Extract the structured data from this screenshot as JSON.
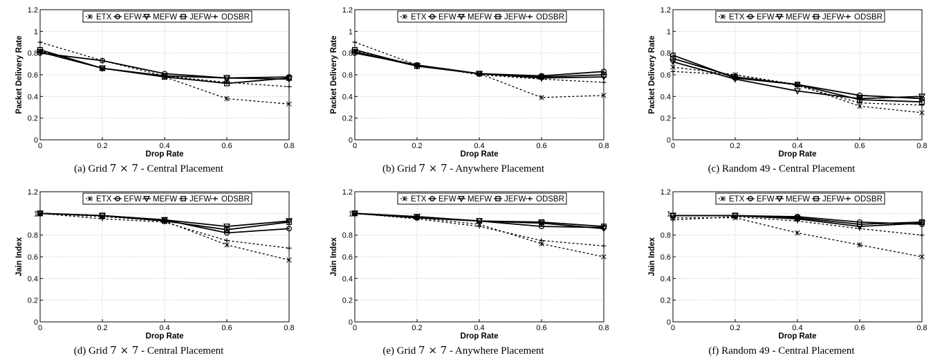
{
  "legend_labels": [
    "ETX",
    "EFW",
    "MEFW",
    "JEFW",
    "ODSBR"
  ],
  "chart_data": [
    {
      "type": "line",
      "caption_prefix": "(a) Grid",
      "caption_math": "7 × 7",
      "caption_suffix": "- Central Placement",
      "xlabel": "Drop Rate",
      "ylabel": "Packet Delivery Rate",
      "xlim": [
        0,
        0.8
      ],
      "ylim": [
        0,
        1.2
      ],
      "x": [
        0,
        0.2,
        0.4,
        0.6,
        0.8
      ],
      "xticks": [
        "0",
        "0.2",
        "0.4",
        "0.6",
        "0.8"
      ],
      "yticks": [
        "0",
        "0.2",
        "0.4",
        "0.6",
        "0.8",
        "1",
        "1.2"
      ],
      "grid": true,
      "legend": "top",
      "series": [
        {
          "name": "ETX",
          "values": [
            0.82,
            0.66,
            0.58,
            0.38,
            0.33
          ]
        },
        {
          "name": "EFW",
          "values": [
            0.8,
            0.73,
            0.61,
            0.57,
            0.58
          ]
        },
        {
          "name": "MEFW",
          "values": [
            0.81,
            0.66,
            0.59,
            0.57,
            0.56
          ]
        },
        {
          "name": "JEFW",
          "values": [
            0.83,
            0.66,
            0.58,
            0.52,
            0.57
          ]
        },
        {
          "name": "ODSBR",
          "values": [
            0.9,
            0.73,
            0.59,
            0.53,
            0.49
          ]
        }
      ]
    },
    {
      "type": "line",
      "caption_prefix": "(b) Grid",
      "caption_math": "7 × 7",
      "caption_suffix": "- Anywhere Placement",
      "xlabel": "Drop Rate",
      "ylabel": "Packet Delivery Rate",
      "xlim": [
        0,
        0.8
      ],
      "ylim": [
        0,
        1.2
      ],
      "x": [
        0,
        0.2,
        0.4,
        0.6,
        0.8
      ],
      "xticks": [
        "0",
        "0.2",
        "0.4",
        "0.6",
        "0.8"
      ],
      "yticks": [
        "0",
        "0.2",
        "0.4",
        "0.6",
        "0.8",
        "1",
        "1.2"
      ],
      "grid": true,
      "legend": "top",
      "series": [
        {
          "name": "ETX",
          "values": [
            0.82,
            0.69,
            0.61,
            0.39,
            0.41
          ]
        },
        {
          "name": "EFW",
          "values": [
            0.8,
            0.69,
            0.61,
            0.59,
            0.63
          ]
        },
        {
          "name": "MEFW",
          "values": [
            0.81,
            0.68,
            0.61,
            0.57,
            0.58
          ]
        },
        {
          "name": "JEFW",
          "values": [
            0.83,
            0.68,
            0.61,
            0.58,
            0.6
          ]
        },
        {
          "name": "ODSBR",
          "values": [
            0.9,
            0.69,
            0.6,
            0.56,
            0.53
          ]
        }
      ]
    },
    {
      "type": "line",
      "caption_prefix": "(c) Random 49",
      "caption_math": "",
      "caption_suffix": "- Central Placement",
      "xlabel": "Drop Rate",
      "ylabel": "Packet Delivery Rate",
      "xlim": [
        0,
        0.8
      ],
      "ylim": [
        0,
        1.2
      ],
      "x": [
        0,
        0.2,
        0.4,
        0.6,
        0.8
      ],
      "xticks": [
        "0",
        "0.2",
        "0.4",
        "0.6",
        "0.8"
      ],
      "yticks": [
        "0",
        "0.2",
        "0.4",
        "0.6",
        "0.8",
        "1",
        "1.2"
      ],
      "grid": true,
      "legend": "top",
      "series": [
        {
          "name": "ETX",
          "values": [
            0.67,
            0.6,
            0.51,
            0.31,
            0.25
          ]
        },
        {
          "name": "EFW",
          "values": [
            0.78,
            0.57,
            0.51,
            0.41,
            0.38
          ]
        },
        {
          "name": "MEFW",
          "values": [
            0.72,
            0.56,
            0.45,
            0.38,
            0.4
          ]
        },
        {
          "name": "JEFW",
          "values": [
            0.75,
            0.58,
            0.51,
            0.37,
            0.35
          ]
        },
        {
          "name": "ODSBR",
          "values": [
            0.63,
            0.6,
            0.5,
            0.34,
            0.32
          ]
        }
      ]
    },
    {
      "type": "line",
      "caption_prefix": "(d) Grid",
      "caption_math": "7 × 7",
      "caption_suffix": "- Central Placement",
      "xlabel": "Drop Rate",
      "ylabel": "Jain Index",
      "xlim": [
        0,
        0.8
      ],
      "ylim": [
        0,
        1.2
      ],
      "x": [
        0,
        0.2,
        0.4,
        0.6,
        0.8
      ],
      "xticks": [
        "0",
        "0.2",
        "0.4",
        "0.6",
        "0.8"
      ],
      "yticks": [
        "0",
        "0.2",
        "0.4",
        "0.6",
        "0.8",
        "1",
        "1.2"
      ],
      "grid": true,
      "legend": "top",
      "series": [
        {
          "name": "ETX",
          "values": [
            1.0,
            0.97,
            0.93,
            0.71,
            0.57
          ]
        },
        {
          "name": "EFW",
          "values": [
            1.0,
            0.98,
            0.94,
            0.82,
            0.86
          ]
        },
        {
          "name": "MEFW",
          "values": [
            1.0,
            0.98,
            0.94,
            0.88,
            0.93
          ]
        },
        {
          "name": "JEFW",
          "values": [
            1.0,
            0.98,
            0.93,
            0.85,
            0.92
          ]
        },
        {
          "name": "ODSBR",
          "values": [
            1.0,
            0.95,
            0.92,
            0.75,
            0.68
          ]
        }
      ]
    },
    {
      "type": "line",
      "caption_prefix": "(e) Grid",
      "caption_math": "7 × 7",
      "caption_suffix": "- Anywhere Placement",
      "xlabel": "Drop Rate",
      "ylabel": "Jain Index",
      "xlim": [
        0,
        0.8
      ],
      "ylim": [
        0,
        1.2
      ],
      "x": [
        0,
        0.2,
        0.4,
        0.6,
        0.8
      ],
      "xticks": [
        "0",
        "0.2",
        "0.4",
        "0.6",
        "0.8"
      ],
      "yticks": [
        "0",
        "0.2",
        "0.4",
        "0.6",
        "0.8",
        "1",
        "1.2"
      ],
      "grid": true,
      "legend": "top",
      "series": [
        {
          "name": "ETX",
          "values": [
            1.0,
            0.96,
            0.9,
            0.72,
            0.6
          ]
        },
        {
          "name": "EFW",
          "values": [
            1.0,
            0.96,
            0.93,
            0.88,
            0.87
          ]
        },
        {
          "name": "MEFW",
          "values": [
            1.0,
            0.97,
            0.93,
            0.91,
            0.86
          ]
        },
        {
          "name": "JEFW",
          "values": [
            1.0,
            0.97,
            0.93,
            0.92,
            0.88
          ]
        },
        {
          "name": "ODSBR",
          "values": [
            1.0,
            0.95,
            0.88,
            0.75,
            0.7
          ]
        }
      ]
    },
    {
      "type": "line",
      "caption_prefix": "(f) Random 49",
      "caption_math": "",
      "caption_suffix": "- Central Placement",
      "xlabel": "Drop Rate",
      "ylabel": "Jain Index",
      "xlim": [
        0,
        0.8
      ],
      "ylim": [
        0,
        1.2
      ],
      "x": [
        0,
        0.2,
        0.4,
        0.6,
        0.8
      ],
      "xticks": [
        "0",
        "0.2",
        "0.4",
        "0.6",
        "0.8"
      ],
      "yticks": [
        "0",
        "0.2",
        "0.4",
        "0.6",
        "0.8",
        "1",
        "1.2"
      ],
      "grid": true,
      "legend": "top",
      "series": [
        {
          "name": "ETX",
          "values": [
            0.96,
            0.96,
            0.82,
            0.71,
            0.6
          ]
        },
        {
          "name": "EFW",
          "values": [
            0.98,
            0.98,
            0.97,
            0.92,
            0.9
          ]
        },
        {
          "name": "MEFW",
          "values": [
            0.98,
            0.98,
            0.95,
            0.88,
            0.91
          ]
        },
        {
          "name": "JEFW",
          "values": [
            0.98,
            0.98,
            0.96,
            0.9,
            0.92
          ]
        },
        {
          "name": "ODSBR",
          "values": [
            0.94,
            0.97,
            0.93,
            0.86,
            0.8
          ]
        }
      ]
    }
  ]
}
